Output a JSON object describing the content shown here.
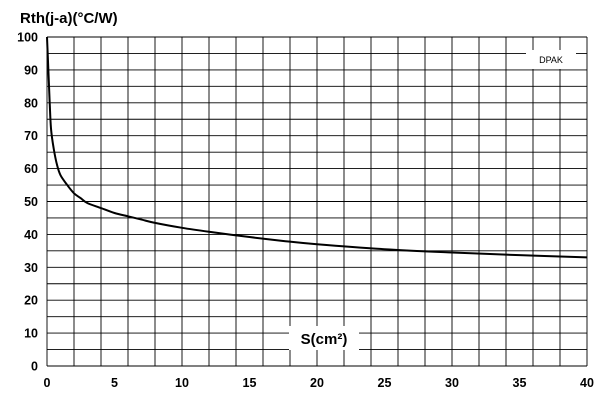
{
  "chart_data": {
    "type": "line",
    "ylabel": "Rth(j-a)(°C/W)",
    "xlabel": "S(cm²)",
    "legend": "DPAK",
    "legend_placement": "top-right",
    "xlim": [
      0,
      40
    ],
    "ylim": [
      0,
      100
    ],
    "x_ticks": [
      "0",
      "5",
      "10",
      "15",
      "20",
      "25",
      "30",
      "35",
      "40"
    ],
    "y_ticks": [
      "0",
      "10",
      "20",
      "30",
      "40",
      "50",
      "60",
      "70",
      "80",
      "90",
      "100"
    ],
    "x_grid_step": 2,
    "y_grid_step": 5,
    "grid": true,
    "series": [
      {
        "name": "DPAK",
        "x": [
          0,
          0.1,
          0.2,
          0.3,
          0.5,
          0.75,
          1,
          1.5,
          2,
          2.5,
          3,
          4,
          5,
          6,
          7,
          8,
          10,
          12,
          15,
          17.5,
          20,
          25,
          30,
          35,
          40
        ],
        "y": [
          100,
          90,
          80,
          72,
          66,
          61,
          58,
          55,
          52.5,
          51,
          49.5,
          48,
          46.5,
          45.5,
          44.5,
          43.5,
          42,
          40.8,
          39.2,
          38,
          37,
          35.5,
          34.5,
          33.7,
          33
        ]
      }
    ]
  }
}
